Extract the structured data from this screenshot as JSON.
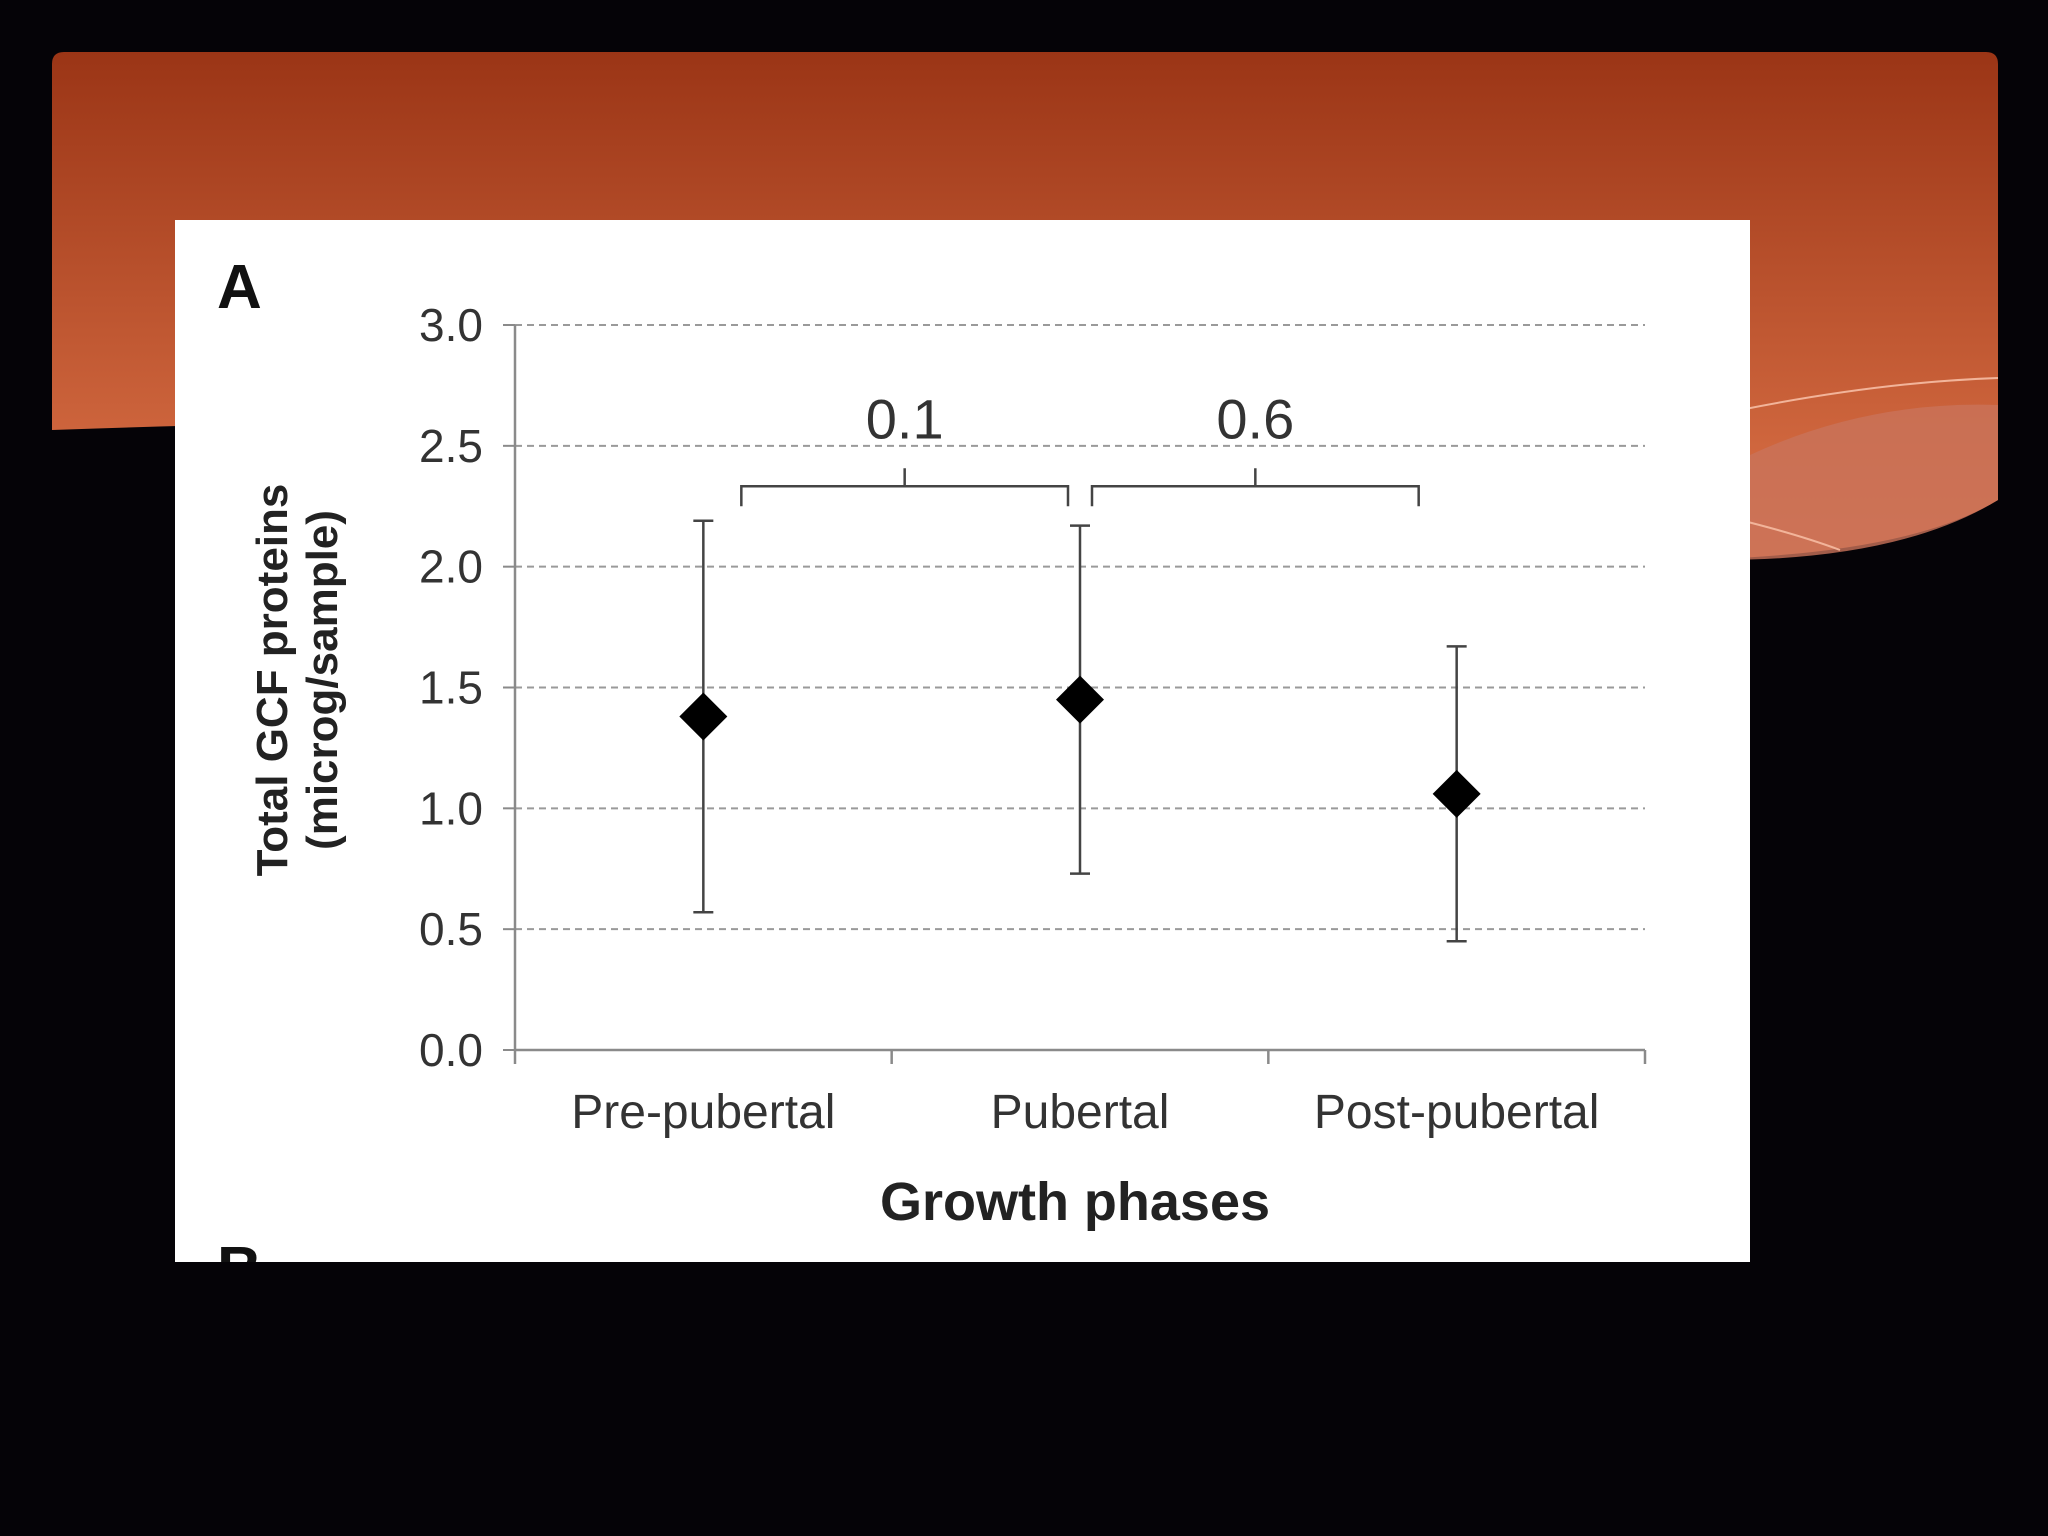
{
  "theme": {
    "banner_top": "#9b3516",
    "banner_bottom": "#de7449",
    "slide_bg": "#050307"
  },
  "figure": {
    "panel_letter": "A",
    "next_panel_letter": "B"
  },
  "chart_data": {
    "type": "scatter",
    "xlabel": "Growth phases",
    "ylabel_lines": [
      "Total GCF proteins",
      "(microg/sample)"
    ],
    "categories": [
      "Pre-pubertal",
      "Pubertal",
      "Post-pubertal"
    ],
    "values": [
      1.38,
      1.45,
      1.06
    ],
    "error_low": [
      0.57,
      0.73,
      0.45
    ],
    "error_high": [
      2.19,
      2.17,
      1.67
    ],
    "ylim": [
      0,
      3.0
    ],
    "yticks": [
      "0.0",
      "0.5",
      "1.0",
      "1.5",
      "2.0",
      "2.5",
      "3.0"
    ],
    "ytick_values": [
      0,
      0.5,
      1.0,
      1.5,
      2.0,
      2.5,
      3.0
    ],
    "grid": true,
    "marker": "diamond",
    "comparisons": [
      {
        "from": 0,
        "to": 1,
        "label": "0.1"
      },
      {
        "from": 1,
        "to": 2,
        "label": "0.6"
      }
    ]
  }
}
